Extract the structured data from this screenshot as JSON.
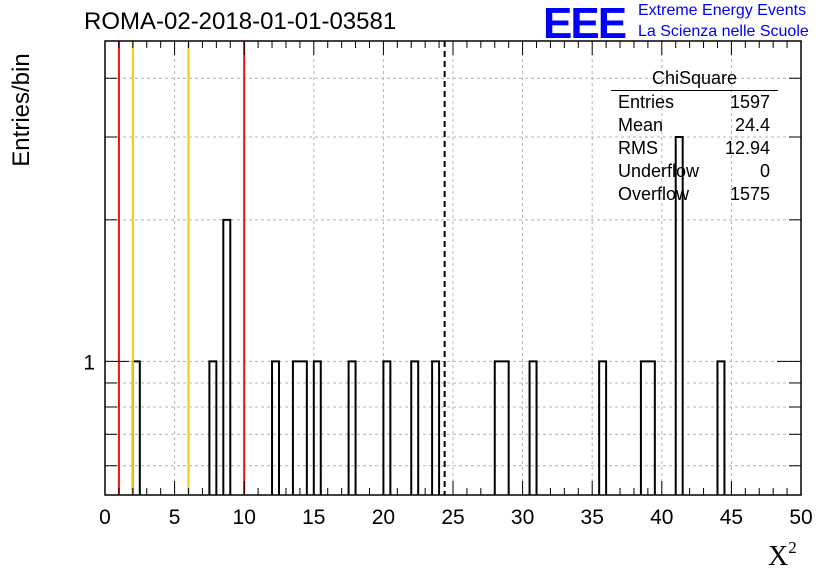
{
  "chart_data": {
    "type": "bar",
    "title": "ROMA-02-2018-01-01-03581",
    "xlabel": "X",
    "xlabel_sup": "2",
    "ylabel": "Entries/bin",
    "xlim": [
      0,
      50
    ],
    "ylim": [
      0.52,
      4.8
    ],
    "y_scale": "log",
    "grid": true,
    "xticks": [
      "0",
      "5",
      "10",
      "15",
      "20",
      "25",
      "30",
      "35",
      "40",
      "45",
      "50"
    ],
    "yticks": [
      "1"
    ],
    "bin_width": 0.5,
    "bins": [
      {
        "x": 2.0,
        "y": 1
      },
      {
        "x": 7.5,
        "y": 1
      },
      {
        "x": 8.5,
        "y": 2
      },
      {
        "x": 12.0,
        "y": 1
      },
      {
        "x": 13.5,
        "y": 1
      },
      {
        "x": 14.0,
        "y": 1
      },
      {
        "x": 15.0,
        "y": 1
      },
      {
        "x": 17.5,
        "y": 1
      },
      {
        "x": 20.0,
        "y": 1
      },
      {
        "x": 22.0,
        "y": 1
      },
      {
        "x": 23.5,
        "y": 1
      },
      {
        "x": 28.0,
        "y": 1
      },
      {
        "x": 28.5,
        "y": 1
      },
      {
        "x": 30.5,
        "y": 1
      },
      {
        "x": 35.5,
        "y": 1
      },
      {
        "x": 38.5,
        "y": 1
      },
      {
        "x": 39.0,
        "y": 1
      },
      {
        "x": 41.0,
        "y": 3
      },
      {
        "x": 44.0,
        "y": 1
      }
    ],
    "vertical_lines": [
      {
        "x": 1,
        "color": "#e8120f",
        "style": "solid"
      },
      {
        "x": 2,
        "color": "#f5c518",
        "style": "solid"
      },
      {
        "x": 6,
        "color": "#f5c518",
        "style": "solid"
      },
      {
        "x": 10,
        "color": "#e8120f",
        "style": "solid"
      },
      {
        "x": 24.4,
        "color": "#000000",
        "style": "dashed"
      }
    ]
  },
  "logo": {
    "text": "EEE",
    "line1": "Extreme Energy Events",
    "line2": "La Scienza nelle Scuole",
    "color": "#0000ff"
  },
  "stats": {
    "title": "ChiSquare",
    "rows": [
      {
        "label": "Entries",
        "value": "1597"
      },
      {
        "label": "Mean",
        "value": "24.4"
      },
      {
        "label": "RMS",
        "value": "12.94"
      },
      {
        "label": "Underflow",
        "value": "0"
      },
      {
        "label": "Overflow",
        "value": "1575"
      }
    ]
  }
}
